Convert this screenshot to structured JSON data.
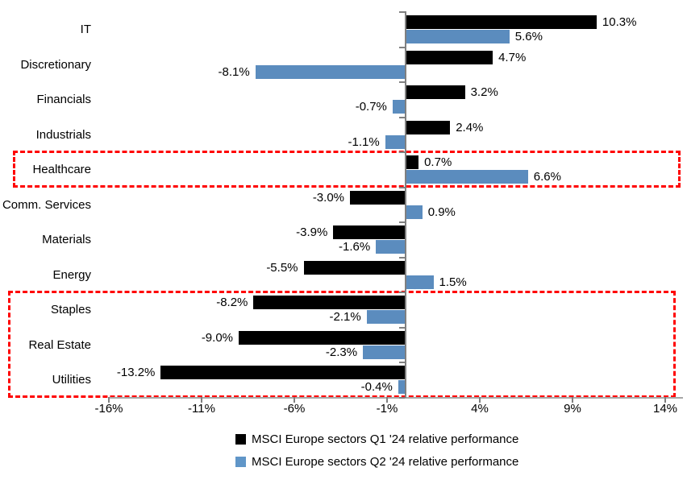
{
  "chart_data": {
    "type": "bar",
    "orientation": "horizontal",
    "title": "",
    "categories": [
      "IT",
      "Discretionary",
      "Financials",
      "Industrials",
      "Healthcare",
      "Comm. Services",
      "Materials",
      "Energy",
      "Staples",
      "Real Estate",
      "Utilities"
    ],
    "series": [
      {
        "name": "MSCI Europe sectors Q1 '24 relative performance",
        "color": "#000000",
        "values": [
          10.3,
          4.7,
          3.2,
          2.4,
          0.7,
          -3.0,
          -3.9,
          -5.5,
          -8.2,
          -9.0,
          -13.2
        ]
      },
      {
        "name": "MSCI Europe sectors Q2 '24 relative performance",
        "color": "#5B8CBE",
        "values": [
          5.6,
          -8.1,
          -0.7,
          -1.1,
          6.6,
          0.9,
          -1.6,
          1.5,
          -2.1,
          -2.3,
          -0.4
        ]
      }
    ],
    "data_label_format": "one_decimal_percent",
    "x_ticks": [
      {
        "value": -16,
        "label": "-16%"
      },
      {
        "value": -11,
        "label": "-11%"
      },
      {
        "value": -6,
        "label": "-6%"
      },
      {
        "value": -1,
        "label": "-1%"
      },
      {
        "value": 4,
        "label": "4%"
      },
      {
        "value": 9,
        "label": "9%"
      },
      {
        "value": 14,
        "label": "14%"
      }
    ],
    "xlim": [
      -16,
      15
    ],
    "grid": false,
    "legend_position": "bottom",
    "legend_marker_colors": [
      "#000000",
      "#6096C8"
    ],
    "axis_line_color": "#a6a6a6",
    "tick_color": "#808080",
    "highlight_boxes": [
      {
        "rows": [
          "Healthcare"
        ],
        "color": "#FF0000",
        "style": "dashed"
      },
      {
        "rows": [
          "Staples",
          "Real Estate",
          "Utilities"
        ],
        "color": "#FF0000",
        "style": "dashed"
      }
    ]
  }
}
